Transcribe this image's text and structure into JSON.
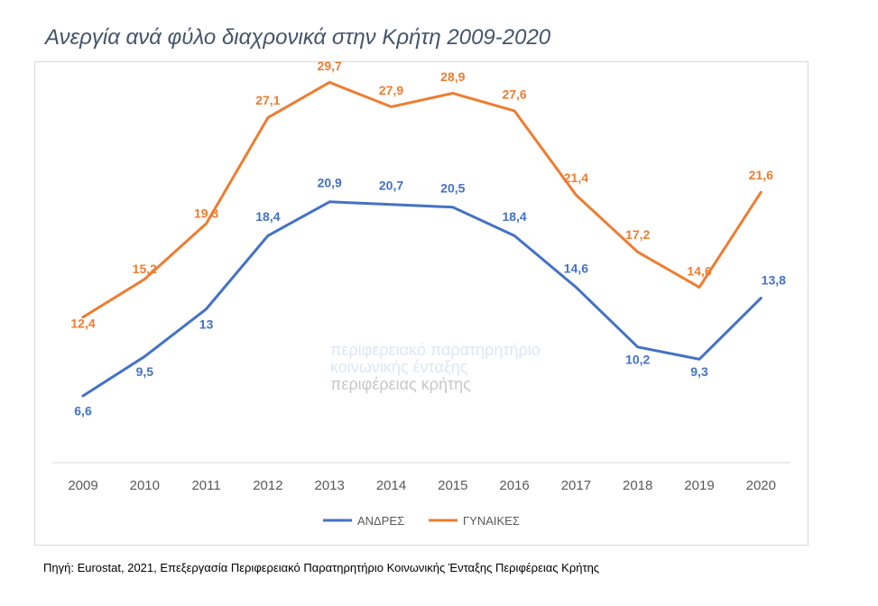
{
  "title": "Ανεργία ανά φύλο διαχρονικά στην Κρήτη 2009-2020",
  "source": "Πηγή: Eurostat,  2021, Επεξεργασία Περιφερειακό Παρατηρητήριο Κοινωνικής Ένταξης Περιφέρειας Κρήτης",
  "watermark": {
    "line1": "περιφερειακό παρατηρητήριο",
    "line2": "κοινωνικής ένταξης",
    "line3": "περιφέρειας κρήτης"
  },
  "chart_data": {
    "type": "line",
    "title": "Ανεργία ανά φύλο διαχρονικά στην Κρήτη 2009-2020",
    "categories": [
      "2009",
      "2010",
      "2011",
      "2012",
      "2013",
      "2014",
      "2015",
      "2016",
      "2017",
      "2018",
      "2019",
      "2020"
    ],
    "series": [
      {
        "name": "ΑΝΔΡΕΣ",
        "color": "#4472c4",
        "values": [
          6.6,
          9.5,
          13,
          18.4,
          20.9,
          20.7,
          20.5,
          18.4,
          14.6,
          10.2,
          9.3,
          13.8
        ],
        "labels": [
          "6,6",
          "9,5",
          "13",
          "18,4",
          "20,9",
          "20,7",
          "20,5",
          "18,4",
          "14,6",
          "10,2",
          "9,3",
          "13,8"
        ]
      },
      {
        "name": "ΓΥΝΑΙΚΕΣ",
        "color": "#ed7d31",
        "values": [
          12.4,
          15.2,
          19.3,
          27.1,
          29.7,
          27.9,
          28.9,
          27.6,
          21.4,
          17.2,
          14.6,
          21.6
        ],
        "labels": [
          "12,4",
          "15,2",
          "19,3",
          "27,1",
          "29,7",
          "27,9",
          "28,9",
          "27,6",
          "21,4",
          "17,2",
          "14,6",
          "21,6"
        ]
      }
    ],
    "legend_position": "bottom",
    "grid": false,
    "data_labels": true
  }
}
